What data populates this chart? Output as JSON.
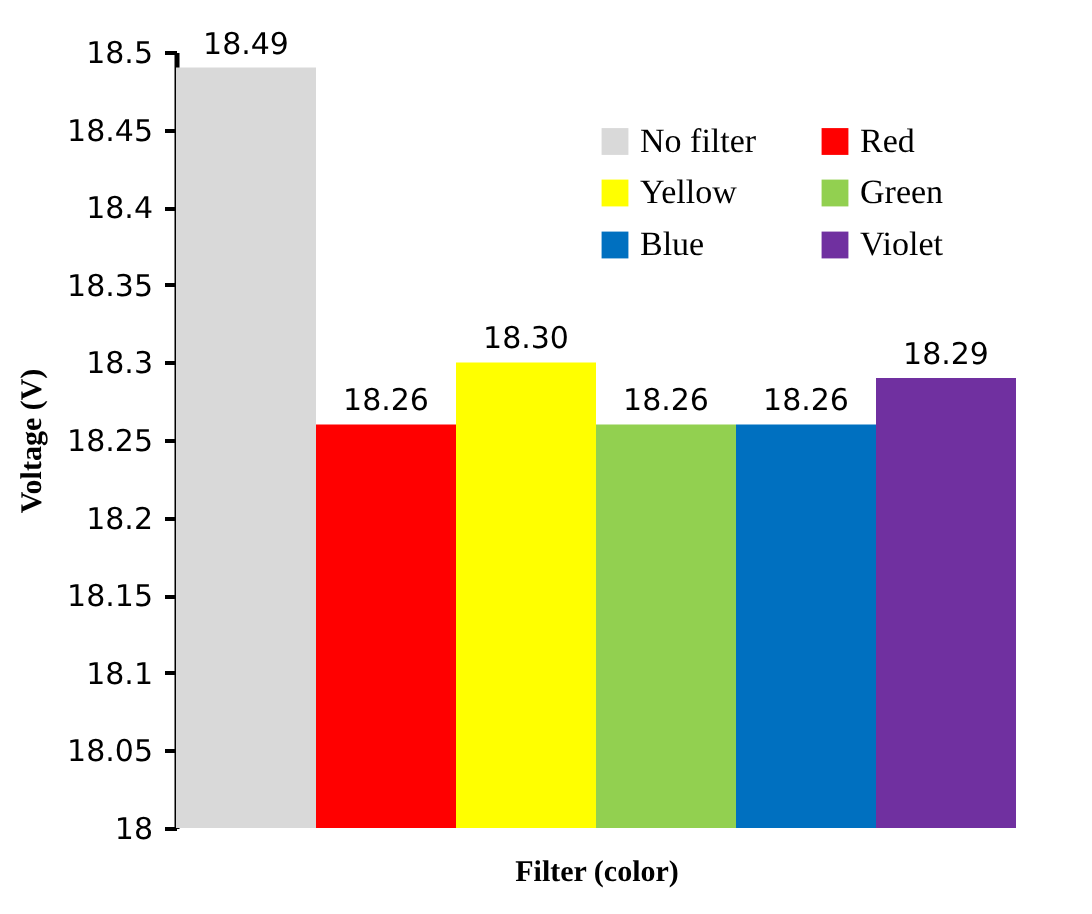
{
  "chart_data": {
    "type": "bar",
    "xlabel": "Filter (color)",
    "ylabel": "Voltage (V)",
    "categories": [
      null
    ],
    "series": [
      {
        "name": "No filter",
        "color": "#d9d9d9",
        "values": [
          18.49
        ],
        "value_labels": [
          "18.49"
        ]
      },
      {
        "name": "Red",
        "color": "#ff0000",
        "values": [
          18.26
        ],
        "value_labels": [
          "18.26"
        ]
      },
      {
        "name": "Yellow",
        "color": "#ffff00",
        "values": [
          18.3
        ],
        "value_labels": [
          "18.30"
        ]
      },
      {
        "name": "Green",
        "color": "#92d050",
        "values": [
          18.26
        ],
        "value_labels": [
          "18.26"
        ]
      },
      {
        "name": "Blue",
        "color": "#0070c0",
        "values": [
          18.26
        ],
        "value_labels": [
          "18.26"
        ]
      },
      {
        "name": "Violet",
        "color": "#7030a0",
        "values": [
          18.29
        ],
        "value_labels": [
          "18.29"
        ]
      }
    ],
    "ylim": [
      18,
      18.5
    ],
    "yticks": [
      18,
      18.05,
      18.1,
      18.15,
      18.2,
      18.25,
      18.3,
      18.35,
      18.4,
      18.45,
      18.5
    ],
    "tick_labels": "y",
    "grid": false,
    "legend": "top right"
  }
}
